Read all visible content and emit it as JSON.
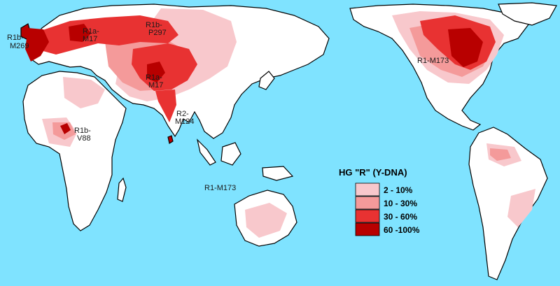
{
  "map": {
    "colors": {
      "ocean": "#7fe3ff",
      "none": "#ffffff",
      "low": "#f8c8cc",
      "mid": "#f49a9a",
      "high": "#e83232",
      "top": "#b80000",
      "border": "#000000"
    },
    "labels": [
      {
        "l1": "R1b-",
        "l2": "M269"
      },
      {
        "l1": "R1a-",
        "l2": "M17"
      },
      {
        "l1": "R1b-",
        "l2": "P297"
      },
      {
        "l1": "R1a-",
        "l2": "M17"
      },
      {
        "l1": "R2-",
        "l2": "M124"
      },
      {
        "l1": "R1b-",
        "l2": "V88"
      },
      {
        "l1": "R1-M173",
        "l2": ""
      },
      {
        "l1": "R1-M173",
        "l2": ""
      }
    ]
  },
  "legend": {
    "title": "HG  \"R\"  (Y-DNA)",
    "items": [
      {
        "label": "2  - 10%",
        "color": "#f8c8cc"
      },
      {
        "label": "10  - 30%",
        "color": "#f49a9a"
      },
      {
        "label": "30  - 60%",
        "color": "#e83232"
      },
      {
        "label": "60  -100%",
        "color": "#b80000"
      }
    ]
  }
}
